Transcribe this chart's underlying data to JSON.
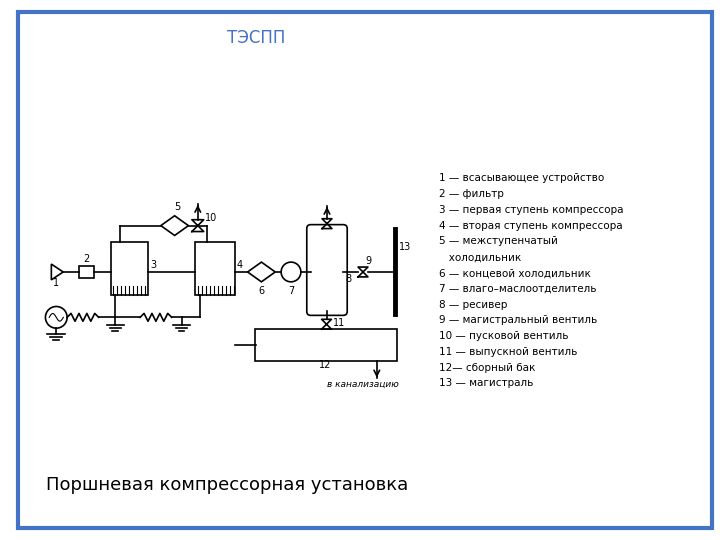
{
  "title": "ТЭСПП",
  "subtitle": "Поршневая компрессорная установка",
  "bg_color": "#ffffff",
  "border_color": "#4472c4",
  "diagram_color": "#000000",
  "legend_lines": [
    "1 — всасывающее устройство",
    "2 — фильтр",
    "3 — первая ступень компрессора",
    "4 — вторая ступень компрессора",
    "5 — межступенчатый",
    "   холодильник",
    "6 — концевой холодильник",
    "7 — влаго–маслоотделитель",
    "8 — ресивер",
    "9 — магистральный вентиль",
    "10 — пусковой вентиль",
    "11 — выпускной вентиль",
    "12— сборный бак",
    "13 — магистраль"
  ],
  "kanalizaciya": "в канализацию"
}
